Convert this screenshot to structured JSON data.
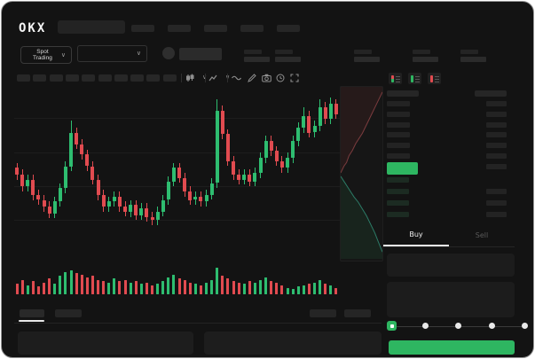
{
  "app": {
    "logo": "OKX"
  },
  "topbar": {
    "nav_placeholder_count": 5
  },
  "ticker": {
    "market_type": "Spot Trading",
    "stat_group_count": 5
  },
  "toolbar": {
    "timeframe_count": 10
  },
  "orderbook": {
    "ask_rows": 7,
    "bid_rows": 4,
    "bid_amount_rows": 3
  },
  "trade_panel": {
    "tabs": {
      "buy": "Buy",
      "sell": "Sell",
      "active": "buy"
    },
    "slider_stops": 5,
    "slider_active_index": 0
  },
  "colors": {
    "up": "#2ebd70",
    "down": "#e14b50",
    "accent_green": "#2eb661",
    "depth_ask_line": "#c95a5e",
    "depth_bid_line": "#3ec9a7",
    "bid_row_tint": "#1c2b22"
  },
  "chart_data": [
    {
      "type": "candlestick",
      "title": "",
      "note_axes": "no tick labels visible (wireframe)",
      "y_range": [
        0,
        100
      ],
      "candles_ohlc": [
        [
          54,
          57,
          47,
          50
        ],
        [
          50,
          53,
          40,
          43
        ],
        [
          43,
          50,
          40,
          47
        ],
        [
          47,
          50,
          35,
          38
        ],
        [
          38,
          41,
          32,
          35
        ],
        [
          35,
          38,
          28,
          31
        ],
        [
          31,
          34,
          24,
          27
        ],
        [
          27,
          37,
          24,
          34
        ],
        [
          34,
          45,
          31,
          42
        ],
        [
          42,
          58,
          39,
          55
        ],
        [
          55,
          82,
          52,
          75
        ],
        [
          75,
          78,
          65,
          68
        ],
        [
          68,
          71,
          59,
          62
        ],
        [
          62,
          65,
          52,
          55
        ],
        [
          55,
          58,
          44,
          47
        ],
        [
          47,
          50,
          35,
          38
        ],
        [
          38,
          41,
          28,
          31
        ],
        [
          31,
          37,
          28,
          34
        ],
        [
          34,
          40,
          31,
          37
        ],
        [
          37,
          40,
          28,
          31
        ],
        [
          31,
          34,
          25,
          28
        ],
        [
          28,
          35,
          25,
          32
        ],
        [
          32,
          35,
          23,
          26
        ],
        [
          26,
          33,
          23,
          30
        ],
        [
          30,
          33,
          22,
          25
        ],
        [
          25,
          28,
          20,
          23
        ],
        [
          23,
          31,
          20,
          28
        ],
        [
          28,
          38,
          25,
          35
        ],
        [
          35,
          49,
          32,
          46
        ],
        [
          46,
          57,
          43,
          54
        ],
        [
          54,
          57,
          45,
          48
        ],
        [
          48,
          51,
          37,
          40
        ],
        [
          40,
          43,
          32,
          35
        ],
        [
          35,
          40,
          32,
          37
        ],
        [
          37,
          40,
          31,
          34
        ],
        [
          34,
          41,
          31,
          38
        ],
        [
          38,
          48,
          35,
          45
        ],
        [
          45,
          95,
          42,
          88
        ],
        [
          88,
          91,
          71,
          74
        ],
        [
          74,
          77,
          55,
          58
        ],
        [
          58,
          61,
          47,
          50
        ],
        [
          50,
          53,
          44,
          47
        ],
        [
          47,
          53,
          44,
          50
        ],
        [
          50,
          53,
          43,
          46
        ],
        [
          46,
          54,
          43,
          51
        ],
        [
          51,
          63,
          48,
          60
        ],
        [
          60,
          73,
          57,
          70
        ],
        [
          70,
          73,
          61,
          64
        ],
        [
          64,
          67,
          55,
          58
        ],
        [
          58,
          61,
          51,
          54
        ],
        [
          54,
          63,
          51,
          60
        ],
        [
          60,
          73,
          57,
          70
        ],
        [
          70,
          81,
          67,
          78
        ],
        [
          78,
          90,
          75,
          85
        ],
        [
          85,
          88,
          72,
          75
        ],
        [
          75,
          82,
          72,
          79
        ],
        [
          79,
          95,
          76,
          90
        ],
        [
          90,
          93,
          80,
          83
        ],
        [
          83,
          96,
          80,
          92
        ],
        [
          92,
          95,
          83,
          86
        ]
      ]
    },
    {
      "type": "bar",
      "name": "volume",
      "colors_follow_candles": true,
      "values": [
        40,
        55,
        35,
        50,
        30,
        45,
        60,
        40,
        70,
        85,
        90,
        80,
        75,
        65,
        70,
        55,
        50,
        45,
        60,
        50,
        55,
        45,
        50,
        40,
        45,
        35,
        40,
        50,
        65,
        75,
        60,
        55,
        45,
        40,
        35,
        45,
        55,
        100,
        70,
        60,
        50,
        45,
        40,
        50,
        45,
        55,
        65,
        50,
        45,
        35,
        25,
        20,
        30,
        35,
        40,
        45,
        55,
        40,
        35,
        25
      ]
    },
    {
      "type": "area",
      "name": "depth",
      "asks_xy_pct": [
        [
          0,
          50
        ],
        [
          8,
          46
        ],
        [
          14,
          44
        ],
        [
          20,
          40
        ],
        [
          28,
          37
        ],
        [
          36,
          33
        ],
        [
          44,
          30
        ],
        [
          52,
          27
        ],
        [
          60,
          23
        ],
        [
          68,
          19
        ],
        [
          76,
          15
        ],
        [
          84,
          11
        ],
        [
          92,
          7
        ],
        [
          100,
          3
        ]
      ],
      "bids_xy_pct": [
        [
          0,
          52
        ],
        [
          8,
          55
        ],
        [
          16,
          58
        ],
        [
          24,
          61
        ],
        [
          32,
          64
        ],
        [
          42,
          67
        ],
        [
          52,
          71
        ],
        [
          62,
          75
        ],
        [
          72,
          80
        ],
        [
          82,
          85
        ],
        [
          90,
          90
        ],
        [
          100,
          96
        ]
      ]
    }
  ]
}
